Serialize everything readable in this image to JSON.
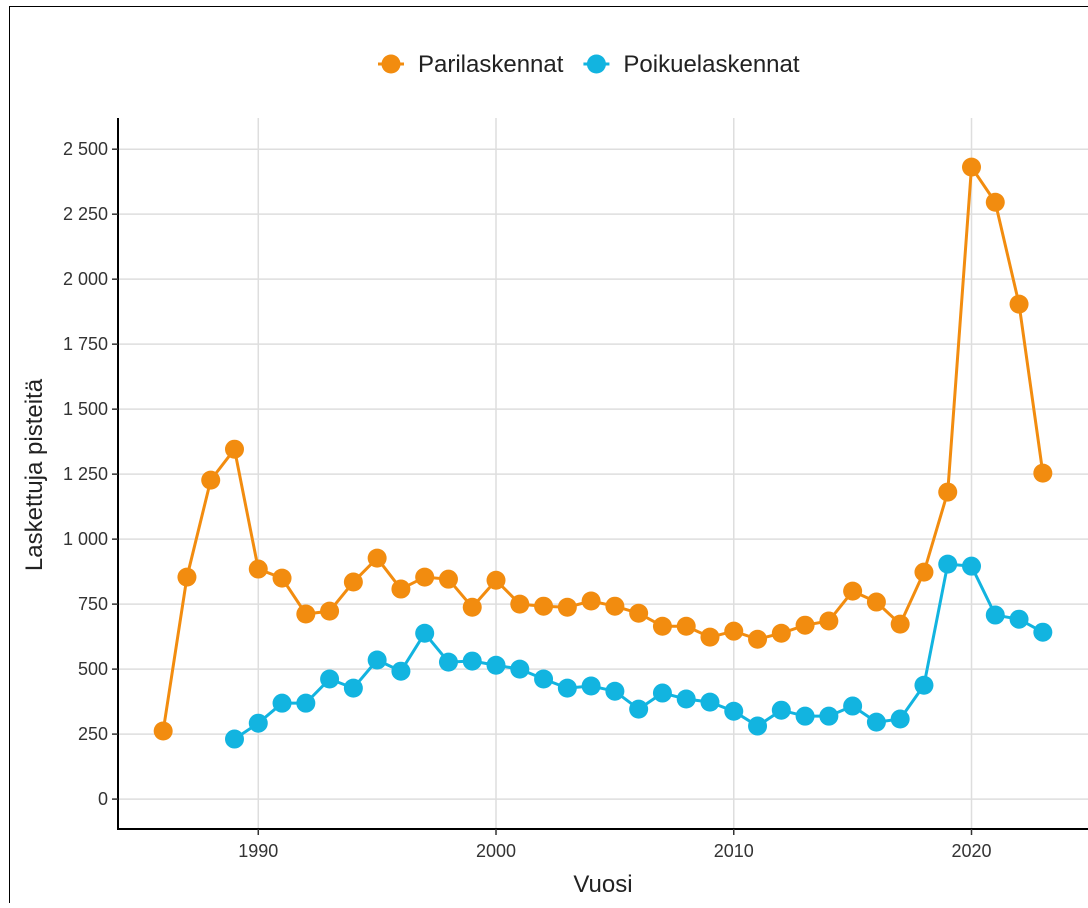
{
  "chart_data": {
    "type": "line",
    "x_label": "Vuosi",
    "y_label": "Laskettuja pisteitä",
    "x": [
      1986,
      1987,
      1988,
      1989,
      1990,
      1991,
      1992,
      1993,
      1994,
      1995,
      1996,
      1997,
      1998,
      1999,
      2000,
      2001,
      2002,
      2003,
      2004,
      2005,
      2006,
      2007,
      2008,
      2009,
      2010,
      2011,
      2012,
      2013,
      2014,
      2015,
      2016,
      2017,
      2018,
      2019,
      2020,
      2021,
      2022,
      2023
    ],
    "series": [
      {
        "name": "Parilaskennat",
        "color": "#f28c0f",
        "values": [
          262,
          854,
          1227,
          1346,
          885,
          850,
          712,
          723,
          835,
          927,
          808,
          854,
          846,
          738,
          842,
          750,
          742,
          738,
          762,
          742,
          715,
          665,
          665,
          623,
          646,
          615,
          638,
          669,
          685,
          800,
          758,
          673,
          873,
          1181,
          2431,
          2296,
          1904,
          1254
        ]
      },
      {
        "name": "Poikuelaskennat",
        "color": "#12b4e0",
        "values": [
          null,
          null,
          null,
          231,
          292,
          369,
          369,
          462,
          427,
          535,
          492,
          638,
          527,
          531,
          515,
          500,
          462,
          427,
          435,
          415,
          346,
          408,
          385,
          373,
          338,
          281,
          342,
          319,
          319,
          358,
          296,
          308,
          438,
          904,
          896,
          708,
          692,
          642
        ]
      }
    ],
    "xlim": [
      1984.1,
      2024.9
    ],
    "xticks": [
      1990,
      2000,
      2010,
      2020
    ],
    "ylim": [
      -115,
      2620
    ],
    "yticks": [
      0,
      250,
      500,
      750,
      {
        "value": 1000,
        "label": "1 000"
      },
      {
        "value": 1250,
        "label": "1 250"
      },
      {
        "value": 1500,
        "label": "1 500"
      },
      {
        "value": 1750,
        "label": "1 750"
      },
      {
        "value": 2000,
        "label": "2 000"
      },
      {
        "value": 2250,
        "label": "2 250"
      },
      {
        "value": 2500,
        "label": "2 500"
      }
    ],
    "grid": true,
    "legend": "top"
  }
}
